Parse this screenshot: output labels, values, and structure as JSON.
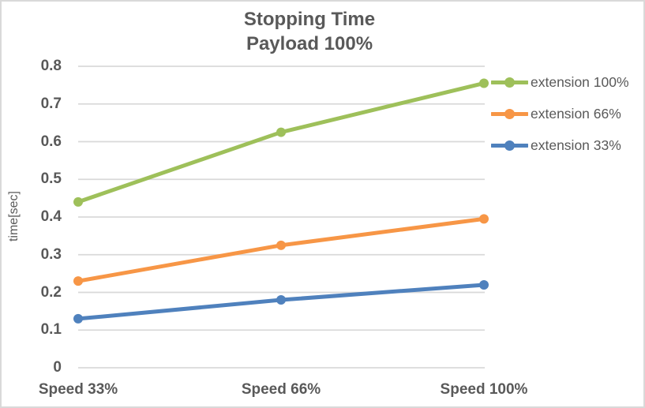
{
  "title": {
    "line1": "Stopping Time",
    "line2": "Payload 100%"
  },
  "chart_data": {
    "type": "line",
    "categories": [
      "Speed 33%",
      "Speed 66%",
      "Speed 100%"
    ],
    "series": [
      {
        "name": "extension 100%",
        "color": "#9EC05A",
        "values": [
          0.44,
          0.625,
          0.755
        ]
      },
      {
        "name": "extension 66%",
        "color": "#F79646",
        "values": [
          0.23,
          0.325,
          0.395
        ]
      },
      {
        "name": "extension 33%",
        "color": "#4F81BD",
        "values": [
          0.13,
          0.18,
          0.22
        ]
      }
    ],
    "title": "Stopping Time Payload 100%",
    "xlabel": "",
    "ylabel": "time[sec]",
    "ylim": [
      0,
      0.8
    ],
    "ytick_step": 0.1,
    "yticks": [
      "0",
      "0.1",
      "0.2",
      "0.3",
      "0.4",
      "0.5",
      "0.6",
      "0.7",
      "0.8"
    ],
    "grid": true,
    "marker": "circle",
    "legend_position": "right"
  },
  "colors": {
    "text": "#595959",
    "gridline": "#D9D9D9",
    "border": "#D9D9D9",
    "background": "#FFFFFF"
  }
}
